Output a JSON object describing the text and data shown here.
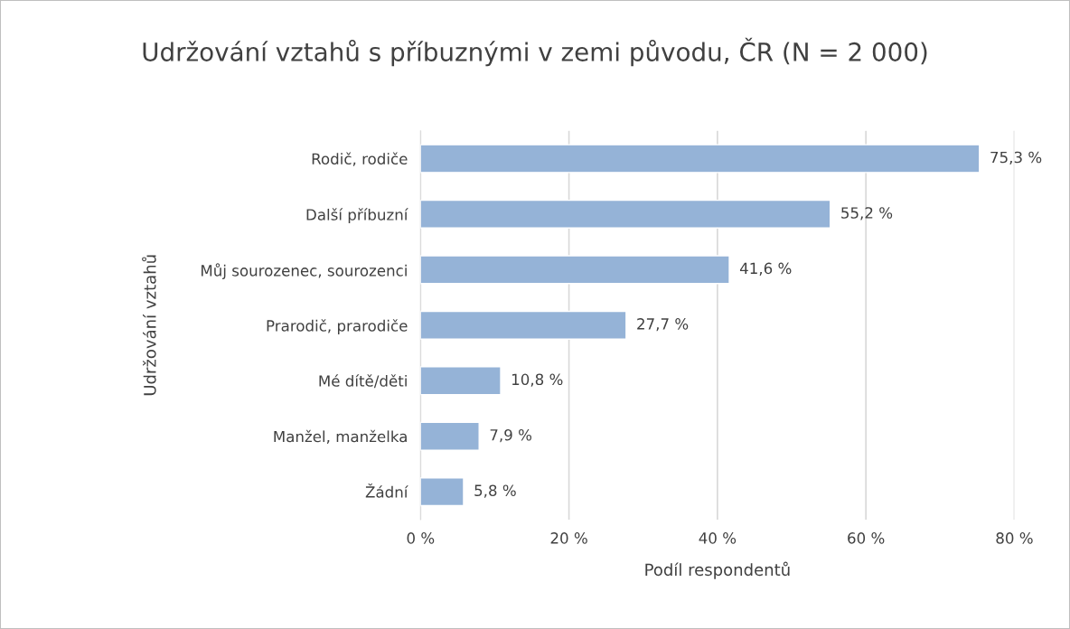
{
  "chart_data": {
    "type": "bar",
    "orientation": "horizontal",
    "title": "Udržování vztahů s příbuznými v zemi původu, ČR (N = 2 000)",
    "xlabel": "Podíl respondentů",
    "ylabel": "Udržování vztahů",
    "categories": [
      "Rodič, rodiče",
      "Další příbuzní",
      "Můj sourozenec, sourozenci",
      "Prarodič, prarodiče",
      "Mé dítě/děti",
      "Manžel, manželka",
      "Žádní"
    ],
    "values": [
      75.3,
      55.2,
      41.6,
      27.7,
      10.8,
      7.9,
      5.8
    ],
    "value_labels": [
      "75,3 %",
      "55,2 %",
      "41,6 %",
      "27,7 %",
      "10,8 %",
      "7,9 %",
      "5,8 %"
    ],
    "color": "#95b3d7",
    "xlim": [
      0,
      80
    ],
    "xticks": [
      {
        "value": 0,
        "label": "0 %"
      },
      {
        "value": 20,
        "label": "20 %"
      },
      {
        "value": 40,
        "label": "40 %"
      },
      {
        "value": 60,
        "label": "60 %"
      },
      {
        "value": 80,
        "label": "80 %"
      }
    ],
    "grid": "x",
    "legend": false
  }
}
